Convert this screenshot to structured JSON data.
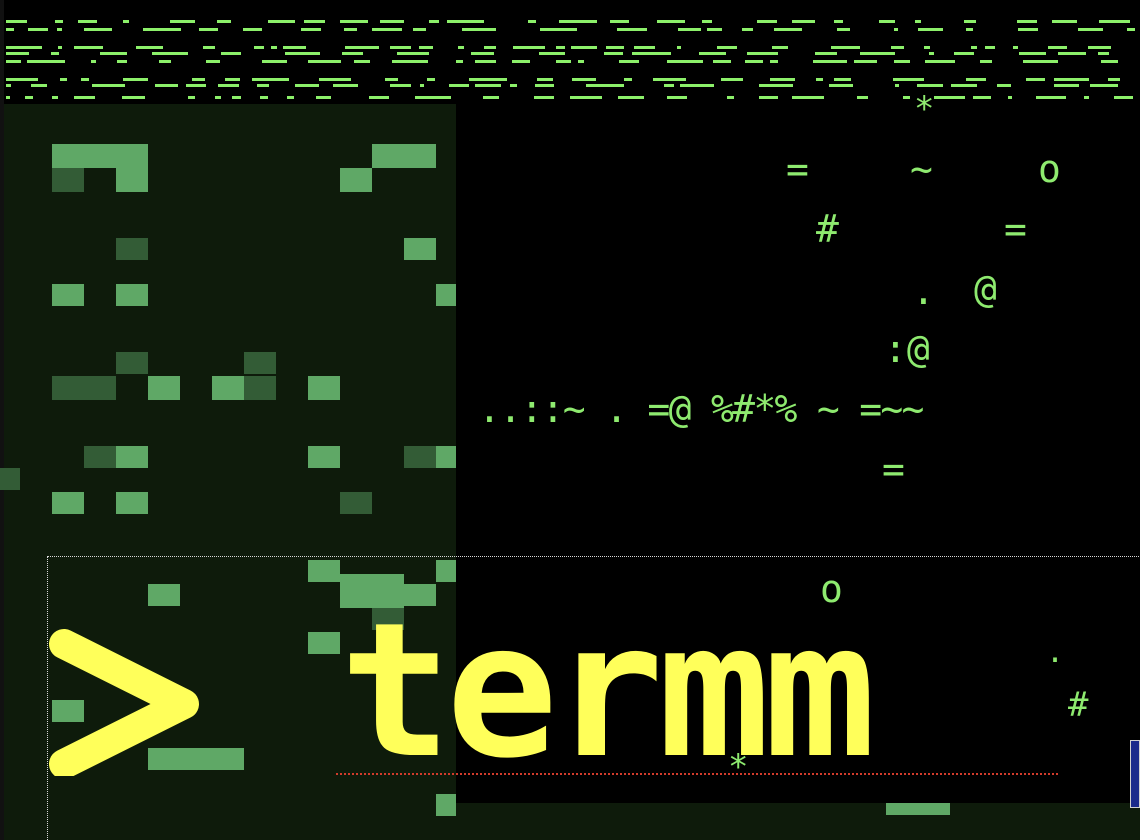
{
  "logo": {
    "prompt_symbol": ">",
    "word": "termm",
    "color": "#ffff5a"
  },
  "ascii_art": {
    "color": "#8eea6f",
    "glyphs": [
      {
        "ch": "*",
        "id": "g1"
      },
      {
        "ch": "=",
        "id": "g2"
      },
      {
        "ch": "~",
        "id": "g3"
      },
      {
        "ch": "o",
        "id": "g4"
      },
      {
        "ch": "#",
        "id": "g5"
      },
      {
        "ch": "=",
        "id": "g6"
      },
      {
        "ch": ".",
        "id": "g7"
      },
      {
        "ch": "@",
        "id": "g8"
      },
      {
        "ch": ":@",
        "id": "g9"
      },
      {
        "ch": "..::~ . =@ %#*% ~ =~~",
        "id": "g10"
      },
      {
        "ch": "=",
        "id": "g11"
      },
      {
        "ch": "o",
        "id": "g12"
      },
      {
        "ch": "#",
        "id": "g13"
      },
      {
        "ch": ".",
        "id": "g14"
      },
      {
        "ch": "*",
        "id": "g15"
      }
    ]
  },
  "colors": {
    "background": "#000000",
    "panel": "#0e1b0b",
    "matrix_green": "#8cf06a",
    "block_green": "#5fa866",
    "block_dark": "#335c36",
    "selection_border": "#d8d8d8",
    "spell_underline": "#d23b2b"
  }
}
